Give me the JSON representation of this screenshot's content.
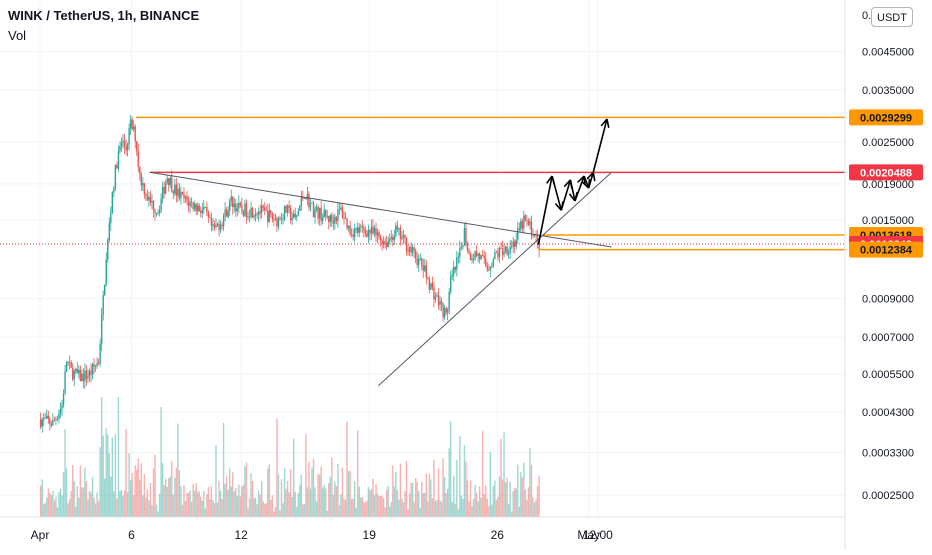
{
  "header": {
    "symbol_line": "WINK / TetherUS, 1h, BINANCE",
    "volume_label": "Vol",
    "currency_button": "USDT"
  },
  "colors": {
    "up": "#26a69a",
    "down": "#ef5350",
    "orange": "#ff9800",
    "red_line": "#f23645",
    "trend": "#131722",
    "grid": "#f0f3fa"
  },
  "chart_data": {
    "type": "candlestick",
    "title": "WINK / TetherUS, 1h, BINANCE",
    "ylim": [
      0.00023,
      0.0056
    ],
    "y_scale": "log",
    "x_ticks": [
      "Apr",
      "6",
      "12",
      "19",
      "26",
      "May",
      "12:00"
    ],
    "y_ticks": [
      "0.0045000",
      "0.0035000",
      "0.0025000",
      "0.0019000",
      "0.0015000",
      "0.0009000",
      "0.0007000",
      "0.0005500",
      "0.0004300",
      "0.0003300",
      "0.0002500"
    ],
    "y_tick_partial": "0.0",
    "price_tags": [
      {
        "label": "0.0029299",
        "value": 0.0029299,
        "style": "orange"
      },
      {
        "label": "0.0020488",
        "value": 0.0020488,
        "style": "red"
      },
      {
        "label": "0.0013618",
        "value": 0.0013618,
        "style": "orange"
      },
      {
        "label": "0.0012843",
        "value": 0.0012843,
        "style": "red"
      },
      {
        "label": "0.0012384",
        "value": 0.0012384,
        "style": "orange"
      }
    ],
    "price_path": [
      [
        "Apr 1 00:00",
        0.00041
      ],
      [
        "Apr 1 18:00",
        0.0004
      ],
      [
        "Apr 2 06:00",
        0.00045
      ],
      [
        "Apr 2 12:00",
        0.0006
      ],
      [
        "Apr 2 18:00",
        0.00056
      ],
      [
        "Apr 3 06:00",
        0.00054
      ],
      [
        "Apr 3 18:00",
        0.00055
      ],
      [
        "Apr 4 06:00",
        0.0006
      ],
      [
        "Apr 4 12:00",
        0.0009
      ],
      [
        "Apr 4 18:00",
        0.0013
      ],
      [
        "Apr 5 00:00",
        0.0018
      ],
      [
        "Apr 5 06:00",
        0.0022
      ],
      [
        "Apr 5 12:00",
        0.0025
      ],
      [
        "Apr 5 18:00",
        0.0024
      ],
      [
        "Apr 6 00:00",
        0.0028
      ],
      [
        "Apr 6 06:00",
        0.0026
      ],
      [
        "Apr 6 12:00",
        0.002
      ],
      [
        "Apr 7 00:00",
        0.0017
      ],
      [
        "Apr 7 12:00",
        0.0016
      ],
      [
        "Apr 8 00:00",
        0.002
      ],
      [
        "Apr 8 12:00",
        0.0018
      ],
      [
        "Apr 9 00:00",
        0.0017
      ],
      [
        "Apr 10 00:00",
        0.0016
      ],
      [
        "Apr 10 12:00",
        0.0014
      ],
      [
        "Apr 11 00:00",
        0.0015
      ],
      [
        "Apr 11 12:00",
        0.0017
      ],
      [
        "Apr 12 00:00",
        0.0016
      ],
      [
        "Apr 13 00:00",
        0.0016
      ],
      [
        "Apr 14 00:00",
        0.0015
      ],
      [
        "Apr 14 12:00",
        0.0016
      ],
      [
        "Apr 15 00:00",
        0.0015
      ],
      [
        "Apr 15 12:00",
        0.0018
      ],
      [
        "Apr 16 00:00",
        0.0016
      ],
      [
        "Apr 17 00:00",
        0.0015
      ],
      [
        "Apr 17 12:00",
        0.0016
      ],
      [
        "Apr 18 00:00",
        0.0014
      ],
      [
        "Apr 19 00:00",
        0.0014
      ],
      [
        "Apr 20 00:00",
        0.0013
      ],
      [
        "Apr 20 12:00",
        0.0014
      ],
      [
        "Apr 21 00:00",
        0.0013
      ],
      [
        "Apr 22 00:00",
        0.0011
      ],
      [
        "Apr 22 12:00",
        0.00095
      ],
      [
        "Apr 23 00:00",
        0.00085
      ],
      [
        "Apr 23 06:00",
        0.0008
      ],
      [
        "Apr 23 12:00",
        0.001
      ],
      [
        "Apr 24 00:00",
        0.0012
      ],
      [
        "Apr 24 06:00",
        0.0014
      ],
      [
        "Apr 24 12:00",
        0.0012
      ],
      [
        "Apr 25 00:00",
        0.0012
      ],
      [
        "Apr 25 12:00",
        0.0011
      ],
      [
        "Apr 26 00:00",
        0.0012
      ],
      [
        "Apr 27 00:00",
        0.0013
      ],
      [
        "Apr 27 12:00",
        0.0015
      ],
      [
        "Apr 28 00:00",
        0.0014
      ],
      [
        "Apr 28 06:00",
        0.00128
      ]
    ],
    "levels": [
      {
        "value": 0.0029299,
        "style": "orange",
        "from": "Apr 6 06:00"
      },
      {
        "value": 0.0020488,
        "style": "red",
        "from": "Apr 7 00:00"
      },
      {
        "value": 0.0013618,
        "style": "orange",
        "from": "Apr 28 12:00"
      },
      {
        "value": 0.0012384,
        "style": "orange",
        "from": "Apr 28 06:00"
      }
    ],
    "trendlines": [
      {
        "from": [
          "Apr 7 00:00",
          0.00205
        ],
        "to": [
          "May 2 06:00",
          0.00126
        ]
      },
      {
        "from": [
          "Apr 19 12:00",
          0.00051
        ],
        "to": [
          "May 2 06:00",
          0.00205
        ]
      }
    ],
    "projection_path": [
      [
        "Apr 28 06:00",
        0.00128
      ],
      [
        "Apr 29 00:00",
        0.002
      ],
      [
        "Apr 29 12:00",
        0.0016
      ],
      [
        "Apr 30 00:00",
        0.00195
      ],
      [
        "Apr 30 06:00",
        0.0017
      ],
      [
        "Apr 30 18:00",
        0.002
      ],
      [
        "May 1 00:00",
        0.00185
      ],
      [
        "May 1 06:00",
        0.00205
      ],
      [
        "May 2 00:00",
        0.0029
      ]
    ]
  }
}
